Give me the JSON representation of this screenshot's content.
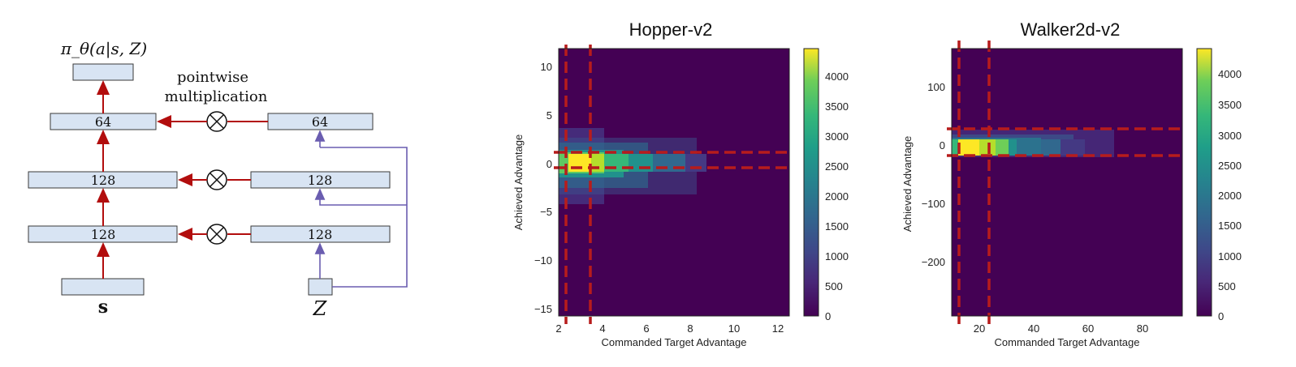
{
  "diagram": {
    "output_label": "π_θ(a|s, Z)",
    "pointwise_label_line1": "pointwise",
    "pointwise_label_line2": "multiplication",
    "left_column": [
      "64",
      "128",
      "128"
    ],
    "right_column": [
      "64",
      "128",
      "128"
    ],
    "s_label": "s",
    "z_label": "Z",
    "multiply_symbol": "⊗"
  },
  "chart_data": [
    {
      "type": "heatmap",
      "title": "Hopper-v2",
      "xlabel": "Commanded Target Advantage",
      "ylabel": "Achieved Advantage",
      "xlim": [
        2,
        12.5
      ],
      "ylim": [
        -15.5,
        11.5
      ],
      "xticks": [
        "2",
        "4",
        "6",
        "8",
        "10",
        "12"
      ],
      "yticks": [
        "10",
        "5",
        "0",
        "−5",
        "−10",
        "−15"
      ],
      "colorbar_ticks": [
        "4000",
        "3500",
        "3000",
        "2500",
        "2000",
        "1500",
        "1000",
        "500",
        "0"
      ],
      "colorbar_range": [
        0,
        4400
      ],
      "colormap": "viridis",
      "dashed_lines_color": "#b71c1c",
      "vertical_dashed_x": [
        2.35,
        3.45
      ],
      "horizontal_dashed_y": [
        1.1,
        -0.5
      ],
      "hotspot": {
        "x": 2.35,
        "y": 0.2,
        "peak": 4400
      }
    },
    {
      "type": "heatmap",
      "title": "Walker2d-v2",
      "xlabel": "Commanded Target Advantage",
      "ylabel": "Achieved Advantage",
      "xlim": [
        10,
        95
      ],
      "ylim": [
        -290,
        165
      ],
      "xticks": [
        "20",
        "40",
        "60",
        "80"
      ],
      "yticks": [
        "100",
        "0",
        "−100",
        "−200"
      ],
      "colorbar_ticks": [
        "4000",
        "3500",
        "3000",
        "2500",
        "2000",
        "1500",
        "1000",
        "500",
        "0"
      ],
      "colorbar_range": [
        0,
        4400
      ],
      "colormap": "viridis",
      "dashed_lines_color": "#b71c1c",
      "vertical_dashed_x": [
        12.5,
        24
      ],
      "horizontal_dashed_y": [
        29,
        -18
      ],
      "hotspot": {
        "x": 15,
        "y": 0,
        "peak": 4400
      }
    }
  ]
}
